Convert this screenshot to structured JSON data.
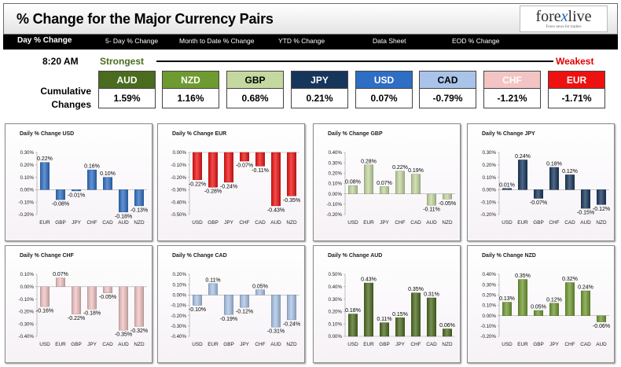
{
  "header": {
    "title": "% Change for the Major Currency Pairs",
    "logo_main": "forexlive",
    "logo_sub": "Forex news for traders"
  },
  "tabs": [
    {
      "label": "Day % Change"
    },
    {
      "label": "5- Day % Change"
    },
    {
      "label": "Month to Date % Change"
    },
    {
      "label": "YTD % Change"
    },
    {
      "label": "Data Sheet"
    },
    {
      "label": "EOD % Change"
    }
  ],
  "strength": {
    "time": "8:20 AM",
    "strongest_label": "Strongest",
    "weakest_label": "Weakest",
    "cumulative_label": "Cumulative Changes",
    "currencies": [
      {
        "code": "AUD",
        "value": "1.59%",
        "bg": "#4b6b1e",
        "fg": "#ffffff"
      },
      {
        "code": "NZD",
        "value": "1.16%",
        "bg": "#6f9a30",
        "fg": "#ffffff"
      },
      {
        "code": "GBP",
        "value": "0.68%",
        "bg": "#c4d8a0",
        "fg": "#000000"
      },
      {
        "code": "JPY",
        "value": "0.21%",
        "bg": "#16365c",
        "fg": "#ffffff"
      },
      {
        "code": "USD",
        "value": "0.07%",
        "bg": "#2e6ec4",
        "fg": "#ffffff"
      },
      {
        "code": "CAD",
        "value": "-0.79%",
        "bg": "#a9c4e8",
        "fg": "#000000"
      },
      {
        "code": "CHF",
        "value": "-1.21%",
        "bg": "#f2c4c4",
        "fg": "#ffffff"
      },
      {
        "code": "EUR",
        "value": "-1.71%",
        "bg": "#ee1111",
        "fg": "#ffffff"
      }
    ]
  },
  "chart_data": [
    {
      "type": "bar",
      "title": "Daily % Change USD",
      "color": "#2e6ec4",
      "categories": [
        "EUR",
        "GBP",
        "JPY",
        "CHF",
        "CAD",
        "AUD",
        "NZD"
      ],
      "values": [
        0.22,
        -0.08,
        -0.01,
        0.16,
        0.1,
        -0.18,
        -0.13
      ],
      "labels": [
        "0.22%",
        "-0.08%",
        "-0.01%",
        "0.16%",
        "0.10%",
        "-0.18%",
        "-0.13%"
      ],
      "ylim": [
        -0.2,
        0.3
      ],
      "ticks": [
        0.3,
        0.2,
        0.1,
        0.0,
        -0.1,
        -0.2
      ],
      "tick_labels": [
        "0.30%",
        "0.20%",
        "0.10%",
        "0.00%",
        "-0.10%",
        "-0.20%"
      ]
    },
    {
      "type": "bar",
      "title": "Daily % Change EUR",
      "color": "#ee1111",
      "categories": [
        "USD",
        "GBP",
        "JPY",
        "CHF",
        "CAD",
        "AUD",
        "NZD"
      ],
      "values": [
        -0.22,
        -0.28,
        -0.24,
        -0.07,
        -0.11,
        -0.43,
        -0.35
      ],
      "labels": [
        "-0.22%",
        "-0.28%",
        "-0.24%",
        "-0.07%",
        "-0.11%",
        "-0.43%",
        "-0.35%"
      ],
      "ylim": [
        -0.5,
        0.0
      ],
      "ticks": [
        0.0,
        -0.1,
        -0.2,
        -0.3,
        -0.4,
        -0.5
      ],
      "tick_labels": [
        "0.00%",
        "-0.10%",
        "-0.20%",
        "-0.30%",
        "-0.40%",
        "-0.50%"
      ]
    },
    {
      "type": "bar",
      "title": "Daily % Change GBP",
      "color": "#c4d8a0",
      "categories": [
        "USD",
        "EUR",
        "JPY",
        "CHF",
        "CAD",
        "AUD",
        "NZD"
      ],
      "values": [
        0.08,
        0.28,
        0.07,
        0.22,
        0.19,
        -0.11,
        -0.05
      ],
      "labels": [
        "0.08%",
        "0.28%",
        "0.07%",
        "0.22%",
        "0.19%",
        "-0.11%",
        "-0.05%"
      ],
      "ylim": [
        -0.2,
        0.4
      ],
      "ticks": [
        0.4,
        0.3,
        0.2,
        0.1,
        0.0,
        -0.1,
        -0.2
      ],
      "tick_labels": [
        "0.40%",
        "0.30%",
        "0.20%",
        "0.10%",
        "0.00%",
        "-0.10%",
        "-0.20%"
      ]
    },
    {
      "type": "bar",
      "title": "Daily % Change JPY",
      "color": "#16365c",
      "categories": [
        "USD",
        "EUR",
        "GBP",
        "CHF",
        "CAD",
        "AUD",
        "NZD"
      ],
      "values": [
        0.01,
        0.24,
        -0.07,
        0.18,
        0.12,
        -0.15,
        -0.12
      ],
      "labels": [
        "0.01%",
        "0.24%",
        "-0.07%",
        "0.18%",
        "0.12%",
        "-0.15%",
        "-0.12%"
      ],
      "ylim": [
        -0.2,
        0.3
      ],
      "ticks": [
        0.3,
        0.2,
        0.1,
        0.0,
        -0.1,
        -0.2
      ],
      "tick_labels": [
        "0.30%",
        "0.20%",
        "0.10%",
        "0.00%",
        "-0.10%",
        "-0.20%"
      ]
    },
    {
      "type": "bar",
      "title": "Daily % Change CHF",
      "color": "#f2c4c4",
      "categories": [
        "USD",
        "EUR",
        "GBP",
        "JPY",
        "CAD",
        "AUD",
        "NZD"
      ],
      "values": [
        -0.16,
        0.07,
        -0.22,
        -0.18,
        -0.05,
        -0.35,
        -0.32
      ],
      "labels": [
        "-0.16%",
        "0.07%",
        "-0.22%",
        "-0.18%",
        "-0.05%",
        "-0.35%",
        "-0.32%"
      ],
      "ylim": [
        -0.4,
        0.1
      ],
      "ticks": [
        0.1,
        0.0,
        -0.1,
        -0.2,
        -0.3,
        -0.4
      ],
      "tick_labels": [
        "0.10%",
        "0.00%",
        "-0.10%",
        "-0.20%",
        "-0.30%",
        "-0.40%"
      ]
    },
    {
      "type": "bar",
      "title": "Daily % Change CAD",
      "color": "#a9c4e8",
      "categories": [
        "USD",
        "EUR",
        "GBP",
        "JPY",
        "CHF",
        "AUD",
        "NZD"
      ],
      "values": [
        -0.1,
        0.11,
        -0.19,
        -0.12,
        0.05,
        -0.31,
        -0.24
      ],
      "labels": [
        "-0.10%",
        "0.11%",
        "-0.19%",
        "-0.12%",
        "0.05%",
        "-0.31%",
        "-0.24%"
      ],
      "ylim": [
        -0.4,
        0.2
      ],
      "ticks": [
        0.2,
        0.1,
        0.0,
        -0.1,
        -0.2,
        -0.3,
        -0.4
      ],
      "tick_labels": [
        "0.20%",
        "0.10%",
        "0.00%",
        "-0.10%",
        "-0.20%",
        "-0.30%",
        "-0.40%"
      ]
    },
    {
      "type": "bar",
      "title": "Daily % Change AUD",
      "color": "#4b6b1e",
      "categories": [
        "USD",
        "EUR",
        "GBP",
        "JPY",
        "CHF",
        "CAD",
        "NZD"
      ],
      "values": [
        0.18,
        0.43,
        0.11,
        0.15,
        0.35,
        0.31,
        0.06
      ],
      "labels": [
        "0.18%",
        "0.43%",
        "0.11%",
        "0.15%",
        "0.35%",
        "0.31%",
        "0.06%"
      ],
      "ylim": [
        0.0,
        0.5
      ],
      "ticks": [
        0.5,
        0.4,
        0.3,
        0.2,
        0.1,
        0.0
      ],
      "tick_labels": [
        "0.50%",
        "0.40%",
        "0.30%",
        "0.20%",
        "0.10%",
        "0.00%"
      ]
    },
    {
      "type": "bar",
      "title": "Daily % Change NZD",
      "color": "#6f9a30",
      "categories": [
        "USD",
        "EUR",
        "GBP",
        "JPY",
        "CHF",
        "CAD",
        "AUD"
      ],
      "values": [
        0.13,
        0.35,
        0.05,
        0.12,
        0.32,
        0.24,
        -0.06
      ],
      "labels": [
        "0.13%",
        "0.35%",
        "0.05%",
        "0.12%",
        "0.32%",
        "0.24%",
        "-0.06%"
      ],
      "ylim": [
        -0.2,
        0.4
      ],
      "ticks": [
        0.4,
        0.3,
        0.2,
        0.1,
        0.0,
        -0.1,
        -0.2
      ],
      "tick_labels": [
        "0.40%",
        "0.30%",
        "0.20%",
        "0.10%",
        "0.00%",
        "-0.10%",
        "-0.20%"
      ]
    }
  ]
}
